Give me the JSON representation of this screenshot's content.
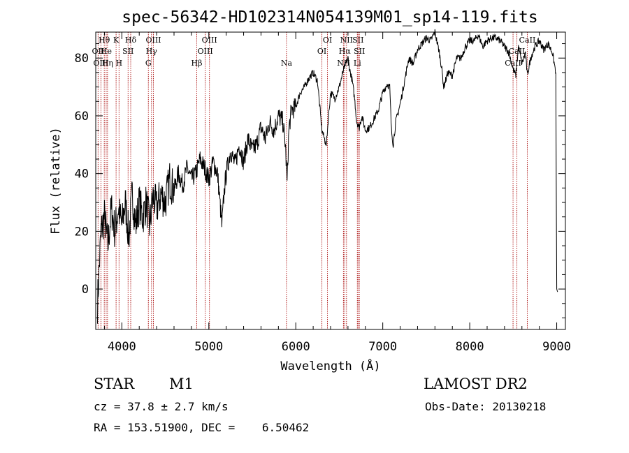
{
  "chart_data": {
    "type": "line",
    "title": "spec-56342-HD102314N054139M01_sp14-119.fits",
    "xlabel": "Wavelength (Å)",
    "ylabel": "Flux (relative)",
    "xlim": [
      3700,
      9100
    ],
    "ylim": [
      -14,
      89
    ],
    "xticks": [
      4000,
      5000,
      6000,
      7000,
      8000,
      9000
    ],
    "yticks": [
      0,
      20,
      40,
      60,
      80
    ],
    "grid": false,
    "series": [
      {
        "x": [
          3720,
          3760,
          3800,
          3840,
          3880,
          3920,
          3960,
          4000,
          4040,
          4080,
          4120,
          4160,
          4200,
          4240,
          4280,
          4320,
          4360,
          4400,
          4450,
          4500,
          4550,
          4600,
          4650,
          4700,
          4750,
          4800,
          4850,
          4900,
          4950,
          5000,
          5050,
          5100,
          5150,
          5180,
          5200,
          5250,
          5300,
          5350,
          5400,
          5450,
          5500,
          5550,
          5600,
          5650,
          5700,
          5750,
          5800,
          5850,
          5880,
          5900,
          5920,
          5950,
          6000,
          6050,
          6100,
          6150,
          6200,
          6250,
          6300,
          6350,
          6400,
          6450,
          6500,
          6550,
          6600,
          6620,
          6650,
          6680,
          6700,
          6730,
          6760,
          6800,
          6850,
          6900,
          6950,
          7000,
          7050,
          7080,
          7100,
          7120,
          7150,
          7200,
          7250,
          7300,
          7350,
          7400,
          7450,
          7500,
          7550,
          7600,
          7650,
          7680,
          7700,
          7750,
          7800,
          7850,
          7900,
          7950,
          8000,
          8050,
          8100,
          8150,
          8200,
          8250,
          8300,
          8350,
          8400,
          8450,
          8500,
          8530,
          8560,
          8600,
          8640,
          8662,
          8700,
          8750,
          8800,
          8850,
          8900,
          8950,
          8990,
          9000,
          9010
        ],
        "y": [
          -5,
          20,
          25,
          15,
          28,
          20,
          28,
          22,
          30,
          18,
          33,
          22,
          30,
          25,
          30,
          22,
          32,
          28,
          33,
          30,
          38,
          34,
          40,
          36,
          42,
          38,
          40,
          45,
          42,
          38,
          44,
          40,
          22,
          35,
          40,
          48,
          43,
          50,
          44,
          52,
          48,
          50,
          56,
          52,
          58,
          55,
          60,
          58,
          50,
          37,
          55,
          62,
          63,
          68,
          70,
          73,
          75,
          72,
          55,
          50,
          68,
          66,
          70,
          76,
          80,
          76,
          72,
          65,
          58,
          56,
          60,
          55,
          56,
          59,
          62,
          68,
          71,
          70,
          55,
          50,
          58,
          64,
          72,
          80,
          78,
          83,
          85,
          87,
          86,
          89,
          82,
          76,
          70,
          75,
          74,
          80,
          80,
          84,
          86,
          86,
          88,
          84,
          86,
          87,
          87,
          86,
          84,
          82,
          76,
          74,
          84,
          78,
          82,
          74,
          80,
          84,
          86,
          83,
          85,
          82,
          75,
          0,
          -1
        ]
      }
    ],
    "lines": [
      {
        "name": "Hθ",
        "wave": 3798,
        "pos": "top"
      },
      {
        "name": "OII",
        "wave": 3727,
        "pos": "mid"
      },
      {
        "name": "OIII",
        "wave": 3760,
        "pos": "bot"
      },
      {
        "name": "He",
        "wave": 3820,
        "pos": "mid"
      },
      {
        "name": "Hη",
        "wave": 3835,
        "pos": "bot"
      },
      {
        "name": "K",
        "wave": 3934,
        "pos": "top"
      },
      {
        "name": "H",
        "wave": 3968,
        "pos": "bot"
      },
      {
        "name": "SII",
        "wave": 4072,
        "pos": "mid"
      },
      {
        "name": "Hδ",
        "wave": 4102,
        "pos": "top"
      },
      {
        "name": "OIII",
        "wave": 4363,
        "pos": "top"
      },
      {
        "name": "Hγ",
        "wave": 4341,
        "pos": "mid"
      },
      {
        "name": "G",
        "wave": 4305,
        "pos": "bot"
      },
      {
        "name": "Hβ",
        "wave": 4861,
        "pos": "bot"
      },
      {
        "name": "OIII",
        "wave": 4959,
        "pos": "mid"
      },
      {
        "name": "OIII",
        "wave": 5007,
        "pos": "top"
      },
      {
        "name": "Na",
        "wave": 5893,
        "pos": "bot"
      },
      {
        "name": "OI",
        "wave": 6300,
        "pos": "mid"
      },
      {
        "name": "OI",
        "wave": 6364,
        "pos": "top"
      },
      {
        "name": "NII",
        "wave": 6548,
        "pos": "bot"
      },
      {
        "name": "Hα",
        "wave": 6563,
        "pos": "mid"
      },
      {
        "name": "NII",
        "wave": 6583,
        "pos": "top"
      },
      {
        "name": "Li",
        "wave": 6708,
        "pos": "bot"
      },
      {
        "name": "SII",
        "wave": 6716,
        "pos": "top"
      },
      {
        "name": "SII",
        "wave": 6731,
        "pos": "mid"
      },
      {
        "name": "CaII",
        "wave": 8498,
        "pos": "bot"
      },
      {
        "name": "CaII",
        "wave": 8542,
        "pos": "mid"
      },
      {
        "name": "CaII",
        "wave": 8662,
        "pos": "top"
      }
    ],
    "line_color": "#b22222"
  },
  "info": {
    "object_class": "STAR",
    "subclass": "M1",
    "survey": "LAMOST DR2",
    "cz": "cz = 37.8 ± 2.7 km/s",
    "obs_date": "Obs-Date: 20130218",
    "coords": "RA = 153.51900, DEC =    6.50462"
  }
}
